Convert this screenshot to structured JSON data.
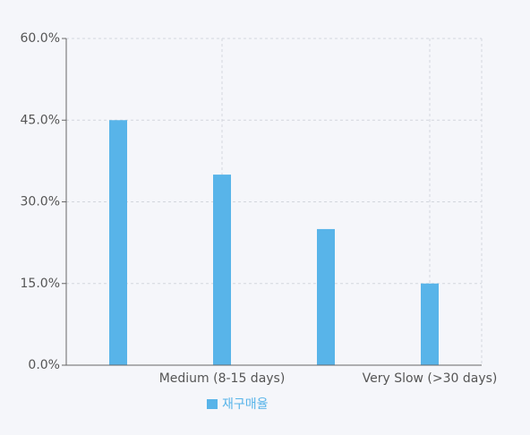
{
  "chart_data": {
    "type": "bar",
    "categories": [
      null,
      "Medium (8-15 days)",
      null,
      "Very Slow (>30 days)"
    ],
    "series": [
      {
        "name": "재구매율",
        "color": "#58b4e9",
        "values": [
          45,
          35,
          25,
          15
        ]
      }
    ],
    "ylim": [
      0,
      60
    ],
    "yticks": [
      {
        "value": 0,
        "label": "0.0%"
      },
      {
        "value": 15,
        "label": "15.0%"
      },
      {
        "value": 30,
        "label": "30.0%"
      },
      {
        "value": 45,
        "label": "45.0%"
      },
      {
        "value": 60,
        "label": "60.0%"
      }
    ],
    "grid": true,
    "legend": "bottom"
  }
}
